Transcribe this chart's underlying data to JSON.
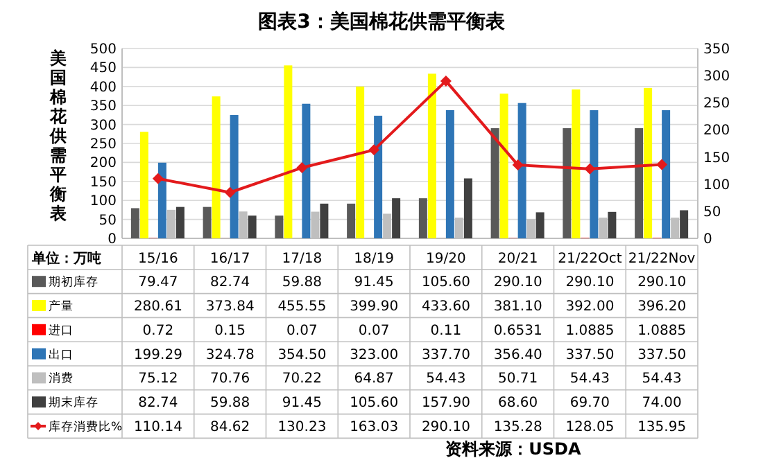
{
  "chart_data": {
    "type": "bar",
    "title": "图表3：美国棉花供需平衡表",
    "ylabel": "美国棉花供需平衡表",
    "categories": [
      "15/16",
      "16/17",
      "17/18",
      "18/19",
      "19/20",
      "20/21",
      "21/22Oct",
      "21/22Nov"
    ],
    "ylim": [
      0,
      500
    ],
    "yticks": [
      0,
      50,
      100,
      150,
      200,
      250,
      300,
      350,
      400,
      450,
      500
    ],
    "y2lim": [
      0,
      350
    ],
    "y2ticks": [
      0,
      50,
      100,
      150,
      200,
      250,
      300,
      350
    ],
    "grid": "y",
    "legend": "bottom",
    "data_labels": true,
    "series": [
      {
        "name": "期初库存",
        "color": "#595959",
        "values": [
          79.47,
          82.74,
          59.88,
          91.45,
          105.6,
          290.1,
          290.1,
          290.1
        ],
        "value_labels": [
          "79.47",
          "82.74",
          "59.88",
          "91.45",
          "105.60",
          "290.10",
          "290.10",
          "290.10"
        ]
      },
      {
        "name": "产量",
        "color": "#ffff00",
        "values": [
          280.61,
          373.84,
          455.55,
          399.9,
          433.6,
          381.1,
          392.0,
          396.2
        ],
        "value_labels": [
          "280.61",
          "373.84",
          "455.55",
          "399.90",
          "433.60",
          "381.10",
          "392.00",
          "396.20"
        ]
      },
      {
        "name": "进口",
        "color": "#ff0000",
        "values": [
          0.72,
          0.15,
          0.07,
          0.07,
          0.11,
          0.6531,
          1.0885,
          1.0885
        ],
        "value_labels": [
          "0.72",
          "0.15",
          "0.07",
          "0.07",
          "0.11",
          "0.6531",
          "1.0885",
          "1.0885"
        ]
      },
      {
        "name": "出口",
        "color": "#2e75b6",
        "values": [
          199.29,
          324.78,
          354.5,
          323.0,
          337.7,
          356.4,
          337.5,
          337.5
        ],
        "value_labels": [
          "199.29",
          "324.78",
          "354.50",
          "323.00",
          "337.70",
          "356.40",
          "337.50",
          "337.50"
        ]
      },
      {
        "name": "消费",
        "color": "#bfbfbf",
        "values": [
          75.12,
          70.76,
          70.22,
          64.87,
          54.43,
          50.71,
          54.43,
          54.43
        ],
        "value_labels": [
          "75.12",
          "70.76",
          "70.22",
          "64.87",
          "54.43",
          "50.71",
          "54.43",
          "54.43"
        ]
      },
      {
        "name": "期末库存",
        "color": "#404040",
        "values": [
          82.74,
          59.88,
          91.45,
          105.6,
          157.9,
          68.6,
          69.7,
          74.0
        ],
        "value_labels": [
          "82.74",
          "59.88",
          "91.45",
          "105.60",
          "157.90",
          "68.60",
          "69.70",
          "74.00"
        ]
      },
      {
        "name": "库存消费比%",
        "type": "line",
        "axis": "y2",
        "marker": "diamond",
        "color": "#e31a1c",
        "values": [
          110.14,
          84.62,
          130.23,
          163.03,
          290.1,
          135.28,
          128.05,
          135.95
        ],
        "value_labels": [
          "110.14",
          "84.62",
          "130.23",
          "163.03",
          "290.10",
          "135.28",
          "128.05",
          "135.95"
        ]
      }
    ],
    "annotations": [
      "单位：万吨",
      "资料来源：USDA"
    ]
  }
}
